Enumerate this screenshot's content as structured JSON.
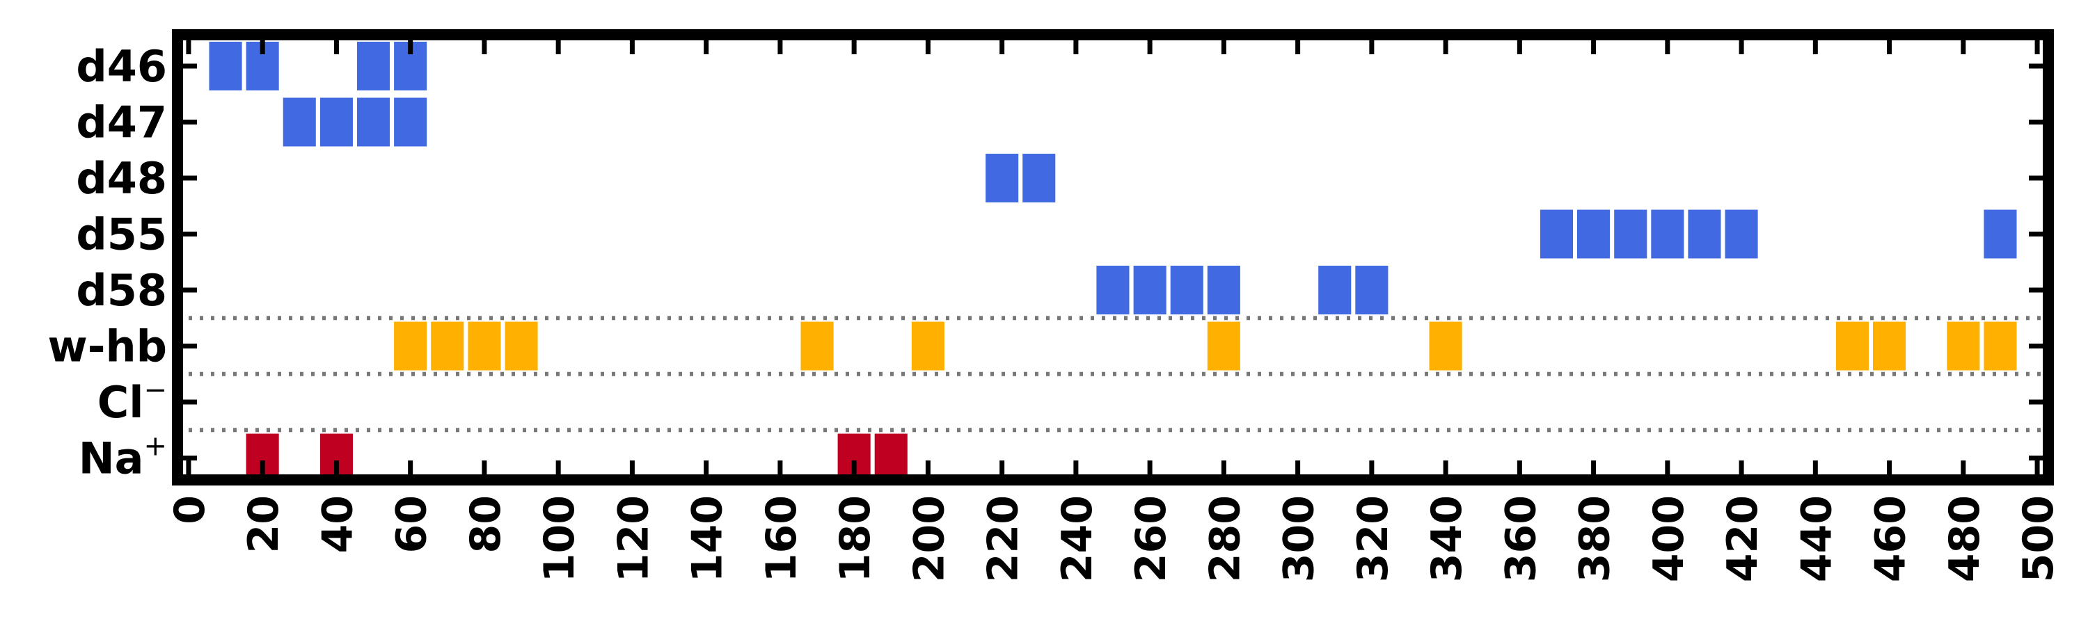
{
  "chart_data": {
    "type": "heatmap",
    "title": "",
    "xlabel": "",
    "ylabel": "",
    "xlim": [
      -3,
      503
    ],
    "x_ticks": [
      0,
      20,
      40,
      60,
      80,
      100,
      120,
      140,
      160,
      180,
      200,
      220,
      240,
      260,
      280,
      300,
      320,
      340,
      360,
      380,
      400,
      420,
      440,
      460,
      480,
      500
    ],
    "x_tick_labels": [
      "0",
      "20",
      "40",
      "60",
      "80",
      "100",
      "120",
      "140",
      "160",
      "180",
      "200",
      "220",
      "240",
      "260",
      "280",
      "300",
      "320",
      "340",
      "360",
      "380",
      "400",
      "420",
      "440",
      "460",
      "480",
      "500"
    ],
    "categories": [
      "d46",
      "d47",
      "d48",
      "d55",
      "d58",
      "w-hb",
      "Cl",
      "Na"
    ],
    "category_labels": [
      {
        "text": "d46",
        "sup": ""
      },
      {
        "text": "d47",
        "sup": ""
      },
      {
        "text": "d48",
        "sup": ""
      },
      {
        "text": "d55",
        "sup": ""
      },
      {
        "text": "d58",
        "sup": ""
      },
      {
        "text": "w-hb",
        "sup": ""
      },
      {
        "text": "Cl",
        "sup": "−"
      },
      {
        "text": "Na",
        "sup": "+"
      }
    ],
    "bin_width": 10,
    "series": [
      {
        "category": "d46",
        "color": "#4169e1",
        "x": [
          10,
          20,
          50,
          60
        ]
      },
      {
        "category": "d47",
        "color": "#4169e1",
        "x": [
          30,
          40,
          50,
          60
        ]
      },
      {
        "category": "d48",
        "color": "#4169e1",
        "x": [
          220,
          230
        ]
      },
      {
        "category": "d55",
        "color": "#4169e1",
        "x": [
          370,
          380,
          390,
          400,
          410,
          420,
          490
        ]
      },
      {
        "category": "d58",
        "color": "#4169e1",
        "x": [
          250,
          260,
          270,
          280,
          310,
          320
        ]
      },
      {
        "category": "w-hb",
        "color": "#ffb000",
        "x": [
          60,
          70,
          80,
          90,
          170,
          200,
          280,
          340,
          450,
          460,
          480,
          490
        ]
      },
      {
        "category": "Cl",
        "color": "#ffb000",
        "x": []
      },
      {
        "category": "Na",
        "color": "#c00020",
        "x": [
          20,
          40,
          180,
          190
        ]
      }
    ],
    "separators_between": [
      [
        "d58",
        "w-hb"
      ],
      [
        "w-hb",
        "Cl"
      ],
      [
        "Cl",
        "Na"
      ]
    ],
    "grid": false,
    "legend": "none"
  }
}
